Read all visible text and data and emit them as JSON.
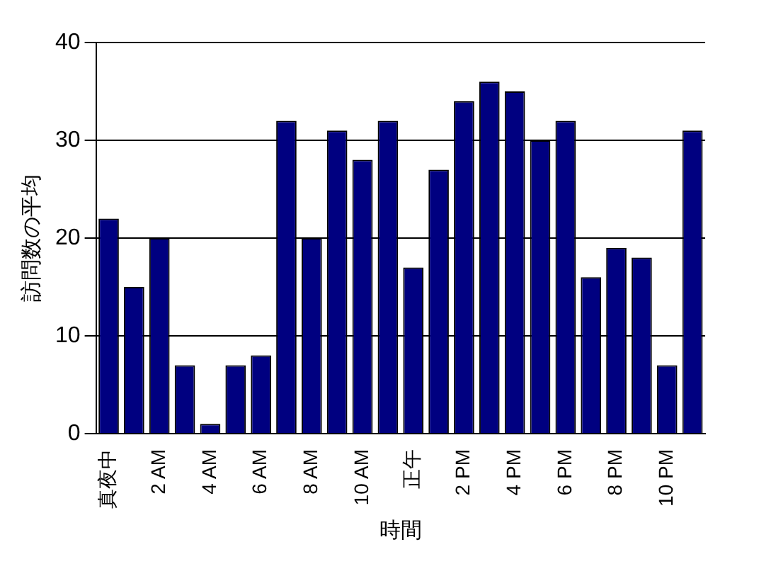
{
  "chart_data": {
    "type": "bar",
    "xlabel": "時間",
    "ylabel": "訪問数の平均",
    "categories": [
      "真夜中",
      null,
      "2 AM",
      null,
      "4 AM",
      null,
      "6 AM",
      null,
      "8 AM",
      null,
      "10 AM",
      null,
      "正午",
      null,
      "2 PM",
      null,
      "4 PM",
      null,
      "6 PM",
      null,
      "8 PM",
      null,
      "10 PM",
      null
    ],
    "values": [
      22,
      15,
      20,
      7,
      1,
      7,
      8,
      32,
      20,
      31,
      28,
      32,
      17,
      27,
      34,
      36,
      35,
      30,
      32,
      16,
      19,
      18,
      7,
      31
    ],
    "color": "#000080",
    "ylim": [
      0,
      40
    ],
    "yticks": [
      0,
      10,
      20,
      30,
      40
    ],
    "grid": "y",
    "legend": false
  }
}
